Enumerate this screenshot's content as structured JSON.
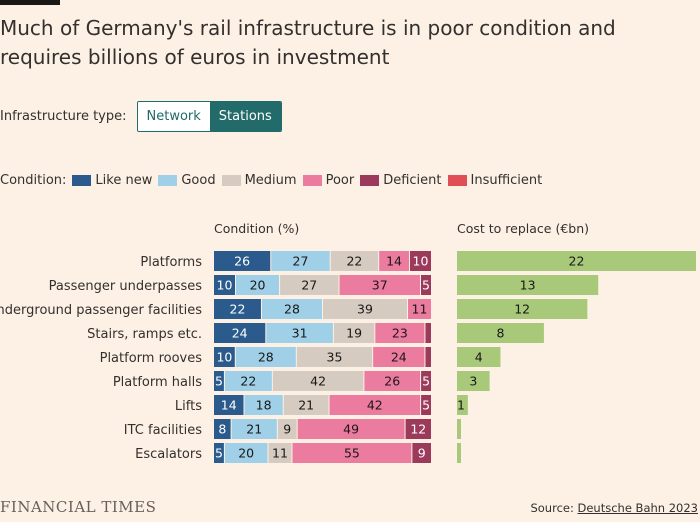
{
  "title": "Much of Germany's rail infrastructure is in poor condition and requires billions of euros in investment",
  "controls": {
    "label": "Infrastructure type:",
    "options": [
      "Network",
      "Stations"
    ],
    "selected": "Stations"
  },
  "legend": {
    "title": "Condition:",
    "items": [
      {
        "label": "Like new",
        "color": "#2a5b8c"
      },
      {
        "label": "Good",
        "color": "#a0d0e8"
      },
      {
        "label": "Medium",
        "color": "#d5cbc1"
      },
      {
        "label": "Poor",
        "color": "#ec7ba0"
      },
      {
        "label": "Deficient",
        "color": "#9b3a5b"
      },
      {
        "label": "Insufficient",
        "color": "#e04e56"
      }
    ]
  },
  "chart_data": [
    {
      "type": "bar",
      "orientation": "horizontal",
      "stacked": true,
      "title": "Condition (%)",
      "categories": [
        "Platforms",
        "Passenger underpasses",
        "Underground passenger facilities",
        "Stairs, ramps etc.",
        "Platform rooves",
        "Platform halls",
        "Lifts",
        "ITC facilities",
        "Escalators"
      ],
      "series": [
        {
          "name": "Like new",
          "values": [
            26,
            10,
            22,
            24,
            10,
            5,
            14,
            8,
            5
          ]
        },
        {
          "name": "Good",
          "values": [
            27,
            20,
            28,
            31,
            28,
            22,
            18,
            21,
            20
          ]
        },
        {
          "name": "Medium",
          "values": [
            22,
            27,
            39,
            19,
            35,
            42,
            21,
            9,
            11
          ]
        },
        {
          "name": "Poor",
          "values": [
            14,
            37,
            11,
            23,
            24,
            26,
            42,
            49,
            55
          ]
        },
        {
          "name": "Deficient",
          "values": [
            10,
            5,
            0,
            3,
            3,
            5,
            5,
            12,
            9
          ]
        },
        {
          "name": "Insufficient",
          "values": [
            0,
            0,
            0,
            0,
            0,
            0,
            0,
            0,
            0
          ]
        }
      ]
    },
    {
      "type": "bar",
      "orientation": "horizontal",
      "title": "Cost to replace (€bn)",
      "categories": [
        "Platforms",
        "Passenger underpasses",
        "Underground passenger facilities",
        "Stairs, ramps etc.",
        "Platform rooves",
        "Platform halls",
        "Lifts",
        "ITC facilities",
        "Escalators"
      ],
      "values": [
        22,
        13,
        12,
        8,
        4,
        3,
        1,
        0.3,
        0.3
      ],
      "labels": [
        "22",
        "13",
        "12",
        "8",
        "4",
        "3",
        "1",
        "",
        ""
      ],
      "color": "#a8c87a",
      "xlim": [
        0,
        22
      ]
    }
  ],
  "footer": {
    "logo": "FINANCIAL TIMES",
    "source_prefix": "Source: ",
    "source_name": "Deutsche Bahn 2023"
  }
}
